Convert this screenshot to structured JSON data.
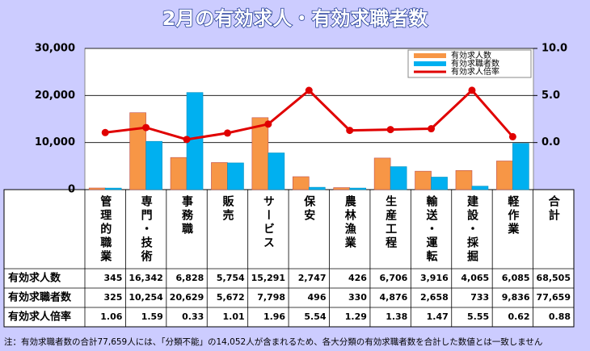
{
  "chart_data": {
    "type": "bar_line",
    "title": "2月の有効求人・有効求職者数",
    "categories": [
      "管理的職業",
      "専門・技術",
      "事務職",
      "販売",
      "サービス",
      "保安",
      "農林漁業",
      "生産工程",
      "輸送・運転",
      "建設・採掘",
      "軽作業",
      "合計"
    ],
    "series": [
      {
        "name": "有効求人数",
        "type": "bar",
        "color": "#f79646",
        "values": [
          345,
          16342,
          6828,
          5754,
          15291,
          2747,
          426,
          6706,
          3916,
          4065,
          6085,
          null
        ],
        "value_labels": [
          "345",
          "16,342",
          "6,828",
          "5,754",
          "15,291",
          "2,747",
          "426",
          "6,706",
          "3,916",
          "4,065",
          "6,085",
          "68,505"
        ]
      },
      {
        "name": "有効求職者数",
        "type": "bar",
        "color": "#00b0f0",
        "values": [
          325,
          10254,
          20629,
          5672,
          7798,
          496,
          330,
          4876,
          2658,
          733,
          9836,
          null
        ],
        "value_labels": [
          "325",
          "10,254",
          "20,629",
          "5,672",
          "7,798",
          "496",
          "330",
          "4,876",
          "2,658",
          "733",
          "9,836",
          "77,659"
        ]
      },
      {
        "name": "有効求人倍率",
        "type": "line",
        "axis": "y2",
        "color": "#e00000",
        "values": [
          1.06,
          1.59,
          0.33,
          1.01,
          1.96,
          5.54,
          1.29,
          1.38,
          1.47,
          5.55,
          0.62,
          null
        ],
        "value_labels": [
          "1.06",
          "1.59",
          "0.33",
          "1.01",
          "1.96",
          "5.54",
          "1.29",
          "1.38",
          "1.47",
          "5.55",
          "0.62",
          "0.88"
        ]
      }
    ],
    "ylim": [
      0,
      30000
    ],
    "yticks": [
      0,
      {
        "value": 10000,
        "label": "10,000"
      },
      {
        "value": 20000,
        "label": "20,000"
      },
      {
        "value": 30000,
        "label": "30,000"
      }
    ],
    "y2lim": [
      -5,
      10
    ],
    "y2ticks": [
      {
        "value": 0,
        "label": "0.0"
      },
      {
        "value": 5,
        "label": "5.0"
      },
      {
        "value": 10,
        "label": "10.0"
      }
    ],
    "grid": true,
    "legend": "upper right"
  },
  "notes": "注：有効求職者数の合計77,659人には、「分類不能」の14,052人が含まれるため、各大分類の有効求職者数を合計した数値とは一致しません"
}
